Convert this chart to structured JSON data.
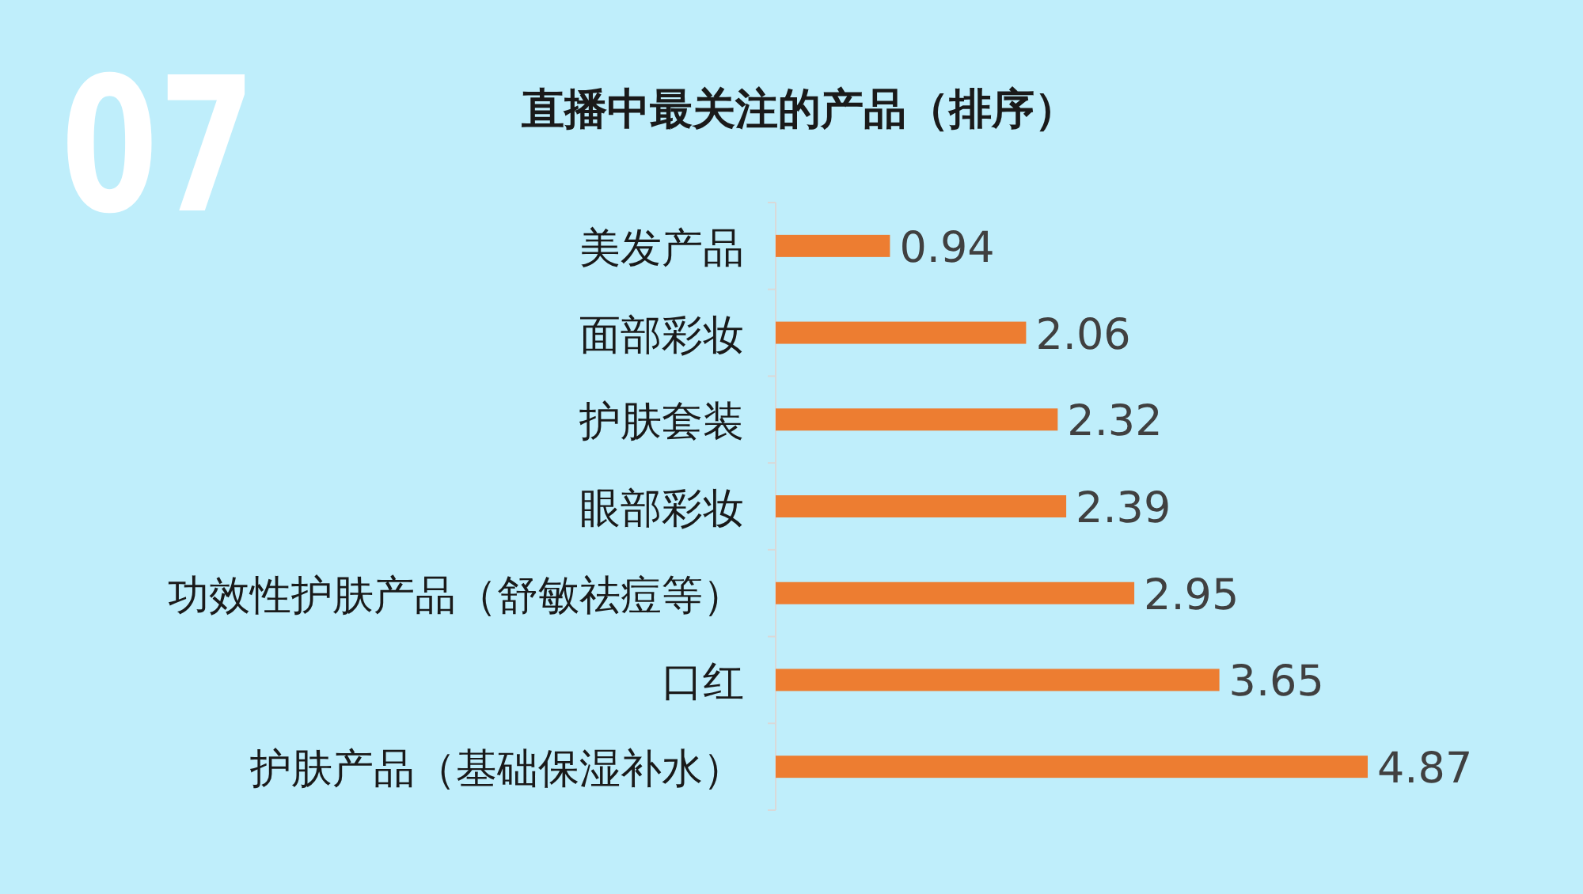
{
  "chart_data": {
    "type": "bar",
    "orientation": "horizontal",
    "title": "直播中最关注的产品（排序）",
    "annotations": [
      "07"
    ],
    "categories": [
      "美发产品",
      "面部彩妆",
      "护肤套装",
      "眼部彩妆",
      "功效性护肤产品（舒敏祛痘等）",
      "口红",
      "护肤产品（基础保湿补水）"
    ],
    "values": [
      0.94,
      2.06,
      2.32,
      2.39,
      2.95,
      3.65,
      4.87
    ],
    "color": "#ed7d31",
    "data_labels": true
  }
}
